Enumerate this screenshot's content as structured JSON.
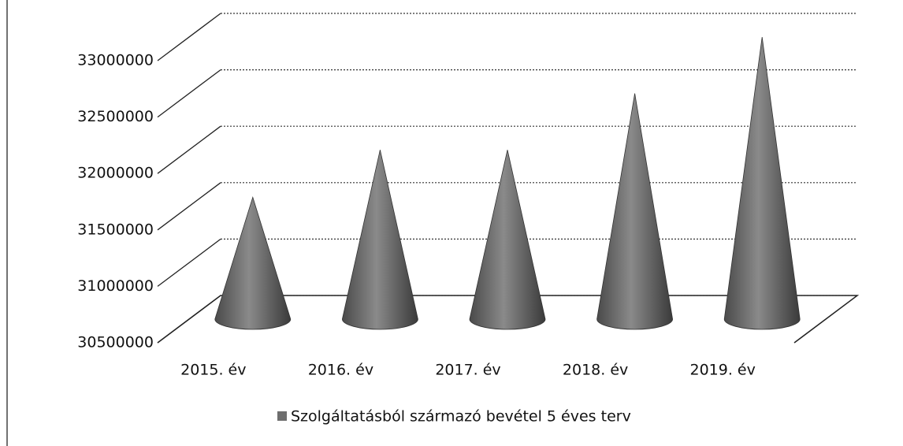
{
  "chart_data": {
    "type": "cone3d",
    "categories": [
      "2015. év",
      "2016. év",
      "2017. év",
      "2018. év",
      "2019. év"
    ],
    "series": [
      {
        "name": "Szolgáltatásból származó bevétel 5 éves terv",
        "color": "#6e6e6e",
        "values": [
          31580000,
          32000000,
          32000000,
          32500000,
          33000000
        ]
      }
    ],
    "ylim": [
      30500000,
      33000000
    ],
    "yticks": [
      30500000,
      31000000,
      31500000,
      32000000,
      32500000,
      33000000
    ],
    "grid": true,
    "legend": "bottom"
  }
}
